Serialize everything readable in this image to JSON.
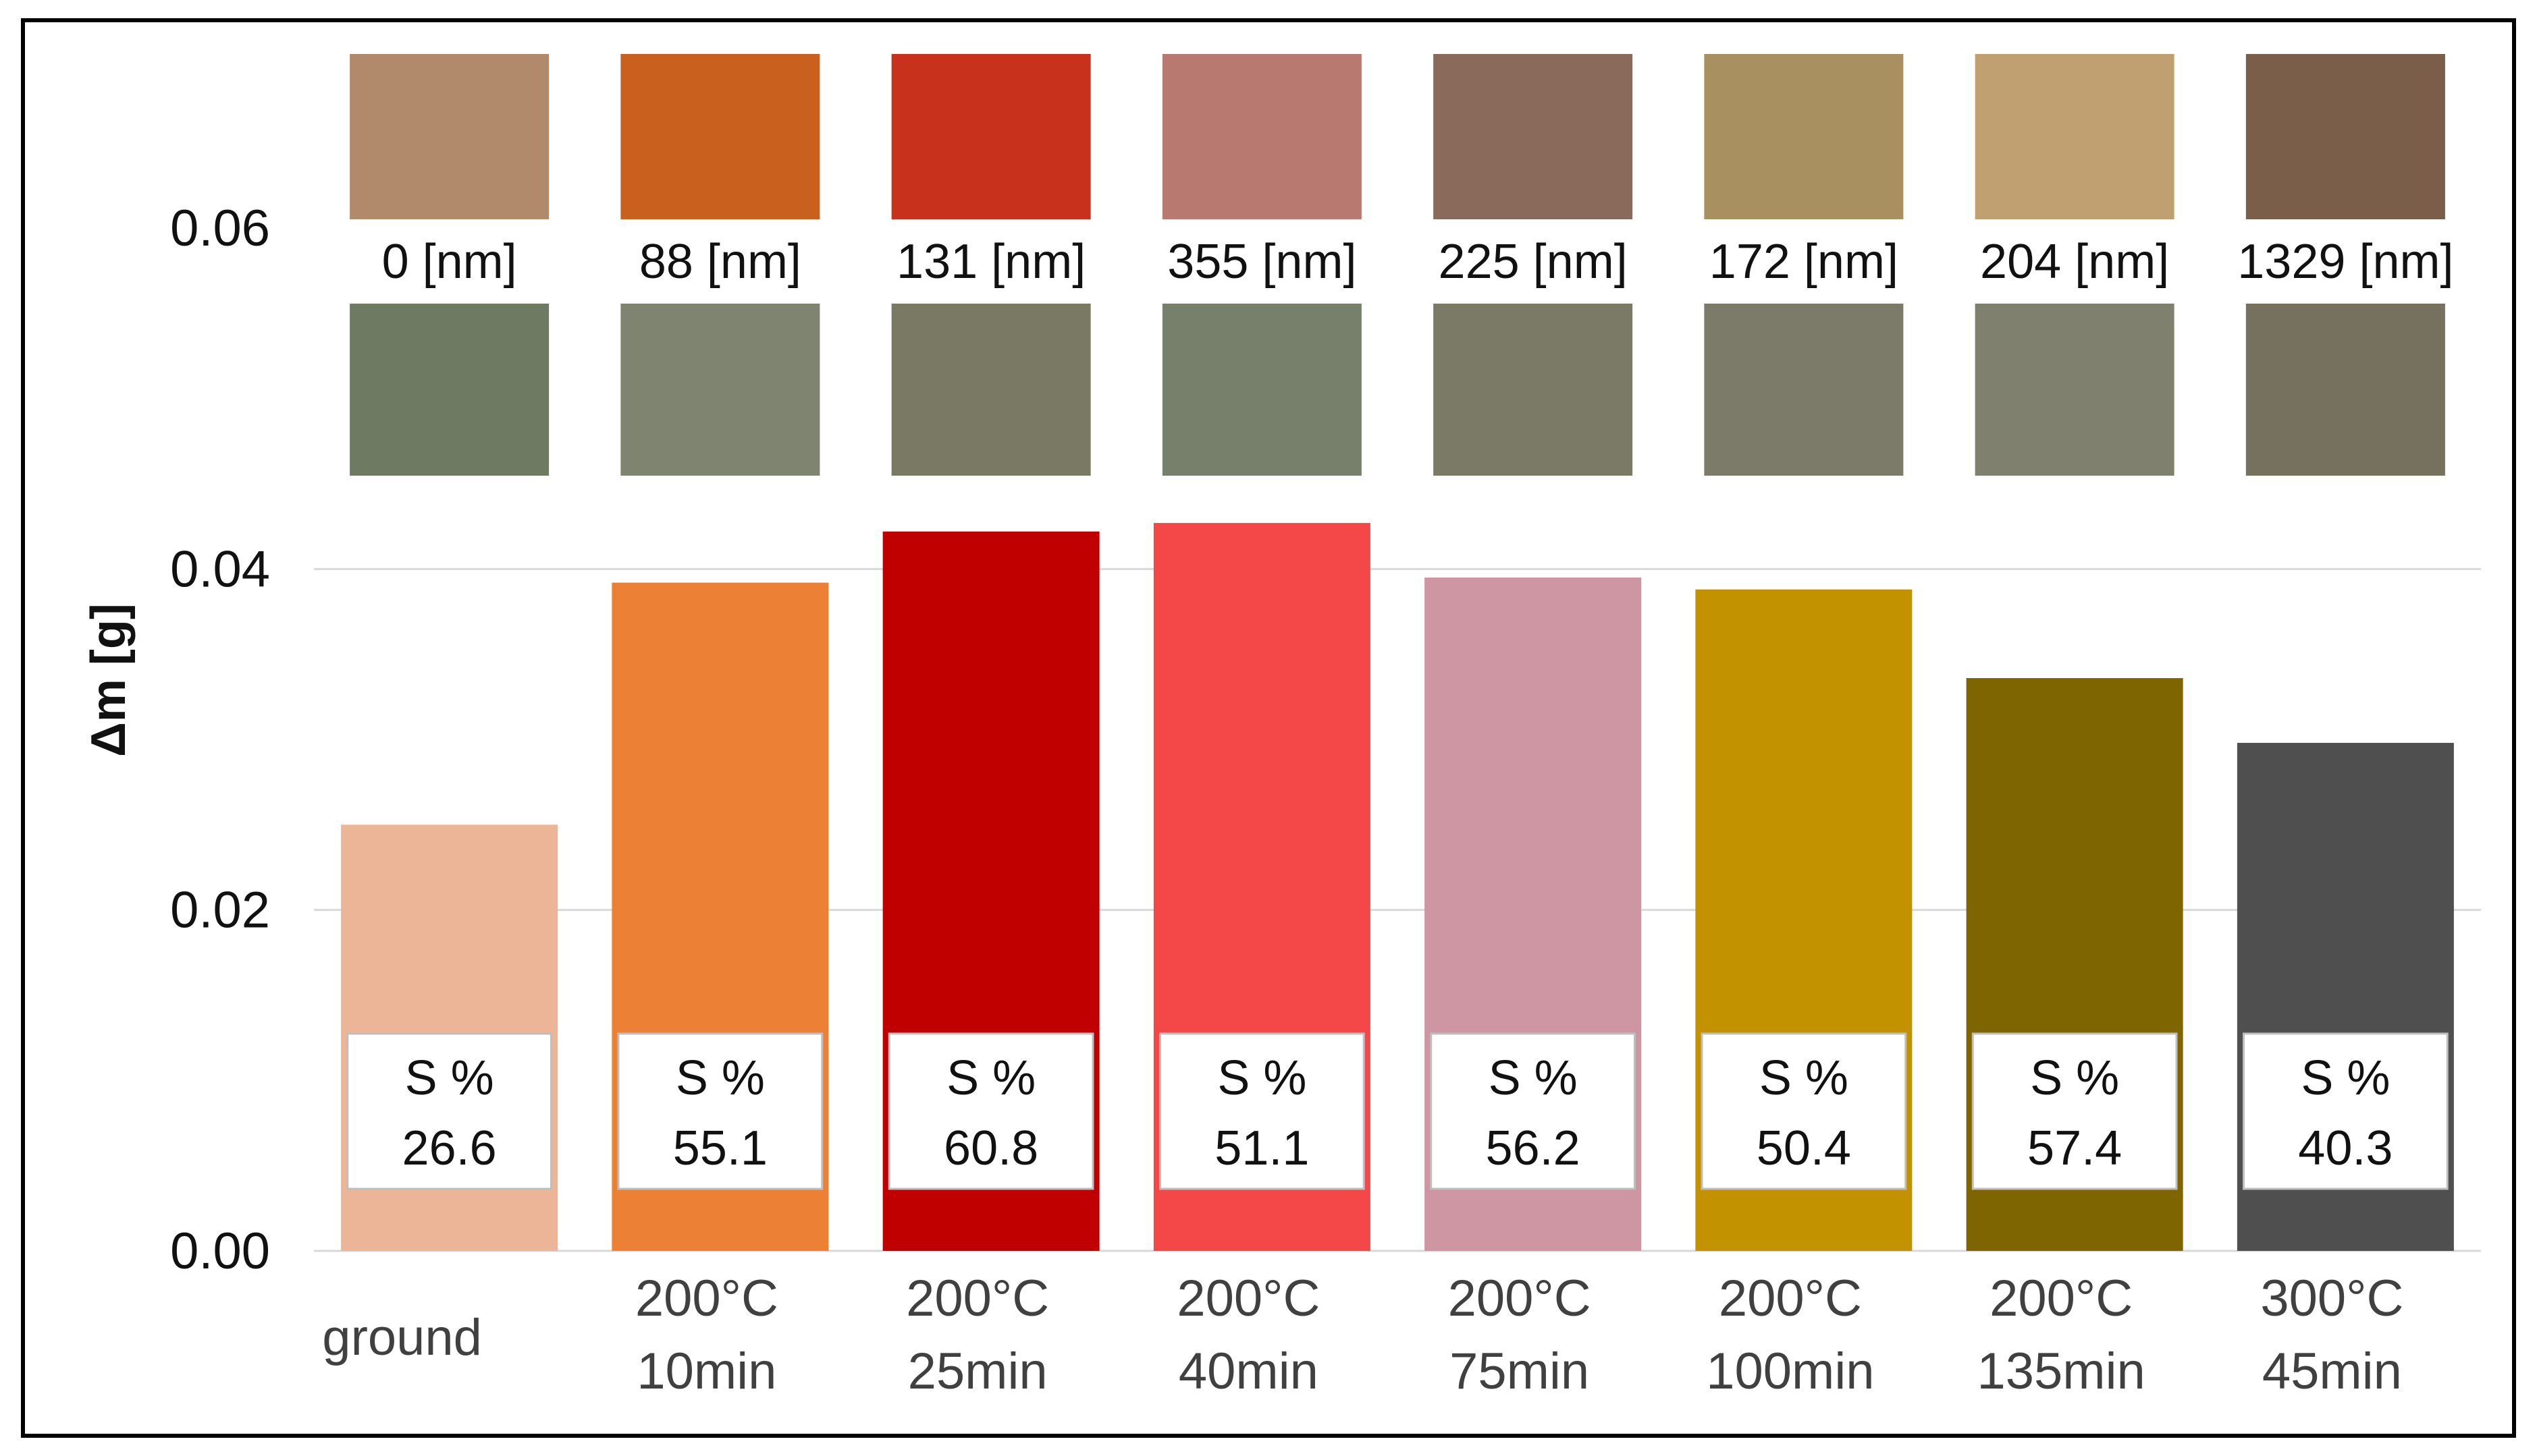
{
  "chart_data": {
    "type": "bar",
    "title": "",
    "ylabel": "Δm [g]",
    "xlabel": "",
    "ylim": [
      0,
      0.06
    ],
    "yticks": [
      "0.00",
      "0.02",
      "0.04",
      "0.06"
    ],
    "grid": true,
    "categories": [
      [
        "ground"
      ],
      [
        "200°C",
        "10min"
      ],
      [
        "200°C",
        "25min"
      ],
      [
        "200°C",
        "40min"
      ],
      [
        "200°C",
        "75min"
      ],
      [
        "200°C",
        "100min"
      ],
      [
        "200°C",
        "135min"
      ],
      [
        "300°C",
        "45min"
      ]
    ],
    "values": [
      0.025,
      0.0392,
      0.0422,
      0.0427,
      0.0395,
      0.0388,
      0.0336,
      0.0298
    ],
    "colors": [
      "#ECB597",
      "#EC8035",
      "#C00000",
      "#F44747",
      "#CE95A2",
      "#C39200",
      "#7F6502",
      "#4F4F4F"
    ],
    "thickness": [
      "0 [nm]",
      "88 [nm]",
      "131 [nm]",
      "355 [nm]",
      "225 [nm]",
      "172 [nm]",
      "204 [nm]",
      "1329 [nm]"
    ],
    "s_label": "S %",
    "s_values": [
      "26.6",
      "55.1",
      "60.8",
      "51.1",
      "56.2",
      "50.4",
      "57.4",
      "40.3"
    ],
    "sample_photo_colors_top": [
      "#B08A6A",
      "#C9601E",
      "#C8321C",
      "#B87A70",
      "#8A6A5A",
      "#A89060",
      "#C0A070",
      "#7A5E4A"
    ],
    "sample_photo_colors_bottom": [
      "#6F7A62",
      "#7E8470",
      "#7A7A64",
      "#76806A",
      "#7A7A66",
      "#7C7A68",
      "#80806E",
      "#76705E"
    ]
  }
}
